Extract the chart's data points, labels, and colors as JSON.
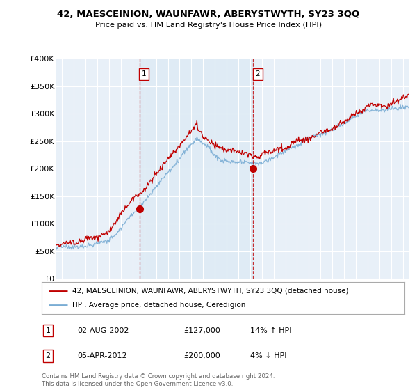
{
  "title": "42, MAESCEINION, WAUNFAWR, ABERYSTWYTH, SY23 3QQ",
  "subtitle": "Price paid vs. HM Land Registry's House Price Index (HPI)",
  "ylabel_ticks": [
    "£0",
    "£50K",
    "£100K",
    "£150K",
    "£200K",
    "£250K",
    "£300K",
    "£350K",
    "£400K"
  ],
  "ylim": [
    0,
    400000
  ],
  "xlim_start": 1995.5,
  "xlim_end": 2025.5,
  "hpi_color": "#7aadd4",
  "price_color": "#c00000",
  "marker1_x": 2002.58,
  "marker1_y": 127000,
  "marker2_x": 2012.25,
  "marker2_y": 200000,
  "vline1_x": 2002.58,
  "vline2_x": 2012.25,
  "shade_color": "#dce9f5",
  "legend_line1": "42, MAESCEINION, WAUNFAWR, ABERYSTWYTH, SY23 3QQ (detached house)",
  "legend_line2": "HPI: Average price, detached house, Ceredigion",
  "anno1_label": "1",
  "anno1_date": "02-AUG-2002",
  "anno1_price": "£127,000",
  "anno1_hpi": "14% ↑ HPI",
  "anno2_label": "2",
  "anno2_date": "05-APR-2012",
  "anno2_price": "£200,000",
  "anno2_hpi": "4% ↓ HPI",
  "footer": "Contains HM Land Registry data © Crown copyright and database right 2024.\nThis data is licensed under the Open Government Licence v3.0.",
  "background_color": "#ffffff",
  "plot_bg_color": "#e8f0f8"
}
